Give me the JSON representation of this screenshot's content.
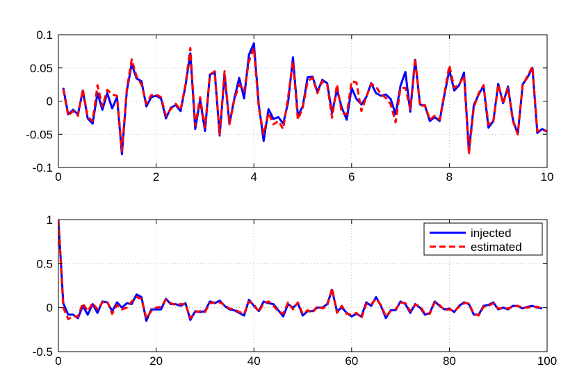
{
  "chart_data": [
    {
      "type": "line",
      "title": "",
      "xlabel": "",
      "ylabel": "",
      "xlim": [
        0,
        10
      ],
      "ylim": [
        -0.1,
        0.1
      ],
      "grid": true,
      "xticks": [
        0,
        2,
        4,
        6,
        8,
        10
      ],
      "xtick_labels": [
        "0",
        "2",
        "4",
        "6",
        "8",
        "10"
      ],
      "yticks": [
        -0.1,
        -0.05,
        0,
        0.05,
        0.1
      ],
      "ytick_labels": [
        "-0.1",
        "-0.05",
        "0",
        "0.05",
        "0.1"
      ],
      "x": [
        0.1,
        0.2,
        0.3,
        0.4,
        0.5,
        0.6,
        0.7,
        0.8,
        0.9,
        1.0,
        1.1,
        1.2,
        1.3,
        1.4,
        1.5,
        1.6,
        1.7,
        1.8,
        1.9,
        2.0,
        2.1,
        2.2,
        2.3,
        2.4,
        2.5,
        2.6,
        2.7,
        2.8,
        2.9,
        3.0,
        3.1,
        3.2,
        3.3,
        3.4,
        3.5,
        3.6,
        3.7,
        3.8,
        3.9,
        4.0,
        4.1,
        4.2,
        4.3,
        4.4,
        4.5,
        4.6,
        4.7,
        4.8,
        4.9,
        5.0,
        5.1,
        5.2,
        5.3,
        5.4,
        5.5,
        5.6,
        5.7,
        5.8,
        5.9,
        6.0,
        6.1,
        6.2,
        6.3,
        6.4,
        6.5,
        6.6,
        6.7,
        6.8,
        6.9,
        7.0,
        7.1,
        7.2,
        7.3,
        7.4,
        7.5,
        7.6,
        7.7,
        7.8,
        7.9,
        8.0,
        8.1,
        8.2,
        8.3,
        8.4,
        8.5,
        8.6,
        8.7,
        8.8,
        8.9,
        9.0,
        9.1,
        9.2,
        9.3,
        9.4,
        9.5,
        9.6,
        9.7,
        9.8,
        9.9,
        10.0
      ],
      "series": [
        {
          "name": "injected",
          "color": "#0000ff",
          "style": "solid",
          "values": [
            0.02,
            -0.02,
            -0.013,
            -0.02,
            0.016,
            -0.026,
            -0.034,
            0.012,
            -0.013,
            0.012,
            -0.011,
            0.006,
            -0.08,
            0.015,
            0.056,
            0.034,
            0.03,
            -0.008,
            0.006,
            0.008,
            0.004,
            -0.026,
            -0.01,
            -0.006,
            -0.015,
            0.023,
            0.072,
            -0.042,
            0.002,
            -0.045,
            0.04,
            0.043,
            -0.052,
            0.04,
            -0.034,
            0.004,
            0.035,
            0.004,
            0.07,
            0.087,
            -0.005,
            -0.06,
            -0.012,
            -0.027,
            -0.024,
            -0.034,
            -0.002,
            0.066,
            -0.022,
            -0.008,
            0.036,
            0.037,
            0.014,
            0.032,
            0.027,
            -0.018,
            0.017,
            -0.01,
            -0.028,
            0.02,
            0.003,
            -0.005,
            0.006,
            0.027,
            0.012,
            0.008,
            0.01,
            0.003,
            -0.02,
            0.023,
            0.044,
            -0.016,
            0.062,
            -0.005,
            -0.007,
            -0.03,
            -0.024,
            -0.03,
            0.01,
            0.047,
            0.016,
            0.024,
            0.043,
            -0.075,
            -0.006,
            0.01,
            0.023,
            -0.04,
            -0.03,
            0.026,
            -0.003,
            0.022,
            -0.028,
            -0.05,
            0.025,
            0.036,
            0.05,
            -0.048,
            -0.042,
            -0.046
          ]
        },
        {
          "name": "estimated",
          "color": "#ff0000",
          "style": "dashed",
          "values": [
            0.018,
            -0.022,
            -0.015,
            -0.022,
            0.018,
            -0.024,
            -0.03,
            0.024,
            -0.008,
            0.017,
            0.01,
            0.008,
            -0.075,
            0.018,
            0.063,
            0.037,
            0.025,
            -0.004,
            0.009,
            0.01,
            0.006,
            -0.022,
            -0.012,
            -0.004,
            -0.013,
            0.025,
            0.08,
            -0.037,
            0.006,
            -0.04,
            0.04,
            0.045,
            -0.05,
            0.045,
            -0.035,
            0.002,
            0.025,
            0.015,
            0.06,
            0.08,
            -0.01,
            -0.05,
            -0.018,
            -0.035,
            -0.03,
            -0.042,
            0.006,
            0.06,
            -0.028,
            -0.01,
            0.03,
            0.035,
            0.012,
            0.03,
            0.025,
            -0.025,
            0.025,
            -0.018,
            -0.02,
            0.03,
            0.028,
            -0.015,
            0.006,
            0.026,
            0.022,
            0.01,
            0.005,
            -0.005,
            -0.032,
            0.02,
            0.02,
            -0.012,
            0.065,
            -0.008,
            -0.006,
            -0.028,
            -0.022,
            -0.028,
            0.012,
            0.054,
            0.02,
            0.025,
            0.038,
            -0.08,
            -0.01,
            0.012,
            0.024,
            -0.035,
            -0.032,
            0.025,
            -0.004,
            0.02,
            -0.03,
            -0.05,
            0.024,
            0.038,
            0.052,
            -0.045,
            -0.044,
            -0.045
          ]
        }
      ]
    },
    {
      "type": "line",
      "title": "",
      "xlabel": "",
      "ylabel": "",
      "xlim": [
        0,
        100
      ],
      "ylim": [
        -0.5,
        1
      ],
      "grid": true,
      "xticks": [
        0,
        20,
        40,
        60,
        80,
        100
      ],
      "xtick_labels": [
        "0",
        "20",
        "40",
        "60",
        "80",
        "100"
      ],
      "yticks": [
        -0.5,
        0,
        0.5,
        1
      ],
      "ytick_labels": [
        "-0.5",
        "0",
        "0.5",
        "1"
      ],
      "legend": {
        "position": "top-right",
        "entries": [
          "injected",
          "estimated"
        ]
      },
      "x": [
        0,
        1,
        2,
        3,
        4,
        5,
        6,
        7,
        8,
        9,
        10,
        11,
        12,
        13,
        14,
        15,
        16,
        17,
        18,
        19,
        20,
        21,
        22,
        23,
        24,
        25,
        26,
        27,
        28,
        29,
        30,
        31,
        32,
        33,
        34,
        35,
        36,
        37,
        38,
        39,
        40,
        41,
        42,
        43,
        44,
        45,
        46,
        47,
        48,
        49,
        50,
        51,
        52,
        53,
        54,
        55,
        56,
        57,
        58,
        59,
        60,
        61,
        62,
        63,
        64,
        65,
        66,
        67,
        68,
        69,
        70,
        71,
        72,
        73,
        74,
        75,
        76,
        77,
        78,
        79,
        80,
        81,
        82,
        83,
        84,
        85,
        86,
        87,
        88,
        89,
        90,
        91,
        92,
        93,
        94,
        95,
        96,
        97,
        98,
        99
      ],
      "series": [
        {
          "name": "injected",
          "color": "#0000ff",
          "style": "solid",
          "values": [
            1.0,
            0.05,
            -0.08,
            -0.08,
            -0.12,
            0.02,
            -0.08,
            0.04,
            -0.06,
            0.07,
            0.06,
            -0.04,
            0.06,
            0.0,
            0.05,
            0.04,
            0.15,
            0.12,
            -0.15,
            -0.02,
            -0.02,
            -0.02,
            0.1,
            0.04,
            0.04,
            0.02,
            0.05,
            -0.14,
            -0.04,
            -0.05,
            -0.04,
            0.07,
            0.05,
            0.08,
            0.02,
            -0.02,
            -0.03,
            -0.06,
            -0.09,
            0.09,
            0.02,
            -0.04,
            0.07,
            0.05,
            0.04,
            -0.03,
            -0.1,
            0.04,
            0.0,
            0.05,
            -0.09,
            -0.04,
            -0.04,
            0.0,
            0.0,
            0.04,
            0.2,
            -0.04,
            0.0,
            -0.06,
            -0.1,
            -0.07,
            -0.1,
            0.06,
            0.02,
            0.12,
            0.02,
            -0.12,
            -0.03,
            -0.03,
            0.07,
            0.04,
            -0.06,
            0.04,
            0.0,
            -0.08,
            -0.06,
            0.07,
            0.02,
            -0.02,
            -0.01,
            -0.05,
            0.02,
            0.06,
            0.04,
            -0.08,
            -0.08,
            0.02,
            0.03,
            0.06,
            -0.02,
            0.0,
            -0.02,
            0.02,
            0.02,
            -0.01,
            0.01,
            0.02,
            0.0,
            -0.01
          ]
        },
        {
          "name": "estimated",
          "color": "#ff0000",
          "style": "dashed",
          "values": [
            1.0,
            0.0,
            -0.13,
            -0.1,
            -0.1,
            0.05,
            -0.04,
            0.05,
            -0.02,
            0.06,
            0.07,
            -0.07,
            0.03,
            -0.02,
            0.0,
            0.07,
            0.12,
            0.1,
            -0.12,
            -0.04,
            0.0,
            0.01,
            0.09,
            0.05,
            0.03,
            0.04,
            0.04,
            -0.12,
            -0.05,
            -0.04,
            -0.05,
            0.05,
            0.06,
            0.06,
            0.03,
            -0.01,
            -0.02,
            -0.05,
            -0.07,
            0.07,
            0.04,
            -0.05,
            0.05,
            0.07,
            0.02,
            -0.04,
            -0.07,
            0.06,
            -0.02,
            0.06,
            -0.07,
            -0.03,
            -0.06,
            0.02,
            -0.01,
            0.02,
            0.22,
            -0.06,
            0.02,
            -0.07,
            -0.08,
            -0.06,
            -0.12,
            0.04,
            0.04,
            0.1,
            0.03,
            -0.1,
            -0.04,
            -0.02,
            0.06,
            0.05,
            -0.04,
            0.03,
            0.02,
            -0.07,
            -0.07,
            0.06,
            0.03,
            -0.03,
            -0.02,
            -0.04,
            0.01,
            0.05,
            0.05,
            -0.07,
            -0.09,
            0.01,
            0.02,
            0.05,
            -0.01,
            -0.01,
            -0.01,
            0.01,
            0.02,
            0.0,
            0.0,
            0.01,
            0.01,
            -0.01
          ]
        }
      ]
    }
  ]
}
